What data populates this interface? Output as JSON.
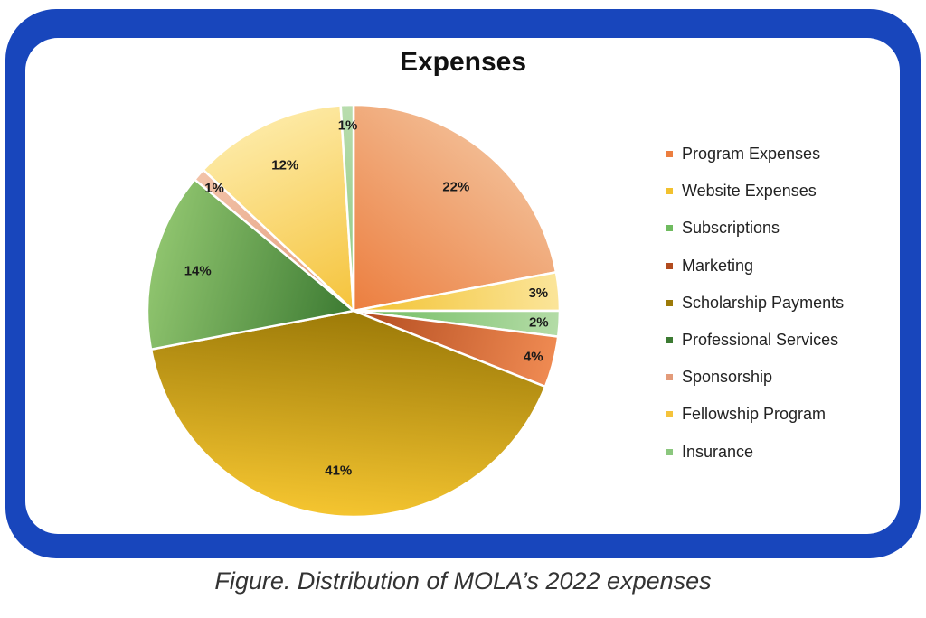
{
  "chart_data": {
    "type": "pie",
    "title": "Expenses",
    "unit": "%",
    "legend_position": "right",
    "slices": [
      {
        "name": "Program Expenses",
        "value": 22,
        "label": "22%",
        "color": "#ec7e3f",
        "color_light": "#f2b98f"
      },
      {
        "name": "Website Expenses",
        "value": 3,
        "label": "3%",
        "color": "#f2c12e",
        "color_light": "#fbe59a"
      },
      {
        "name": "Subscriptions",
        "value": 2,
        "label": "2%",
        "color": "#6fbb5f",
        "color_light": "#b4dca7"
      },
      {
        "name": "Marketing",
        "value": 4,
        "label": "4%",
        "color": "#b24b1f",
        "color_light": "#ef8a52"
      },
      {
        "name": "Scholarship Payments",
        "value": 41,
        "label": "41%",
        "color": "#9c7a08",
        "color_light": "#f5c530"
      },
      {
        "name": "Professional Services",
        "value": 14,
        "label": "14%",
        "color": "#3c7a32",
        "color_light": "#8fc46e"
      },
      {
        "name": "Sponsorship",
        "value": 1,
        "label": "1%",
        "color": "#e39b7a",
        "color_light": "#f2c3a9"
      },
      {
        "name": "Fellowship Program",
        "value": 12,
        "label": "12%",
        "color": "#f5c33b",
        "color_light": "#fde9a3"
      },
      {
        "name": "Insurance",
        "value": 1,
        "label": "1%",
        "color": "#8bc77e",
        "color_light": "#b9ddae"
      }
    ]
  },
  "caption": "Figure. Distribution of MOLA’s 2022 expenses"
}
